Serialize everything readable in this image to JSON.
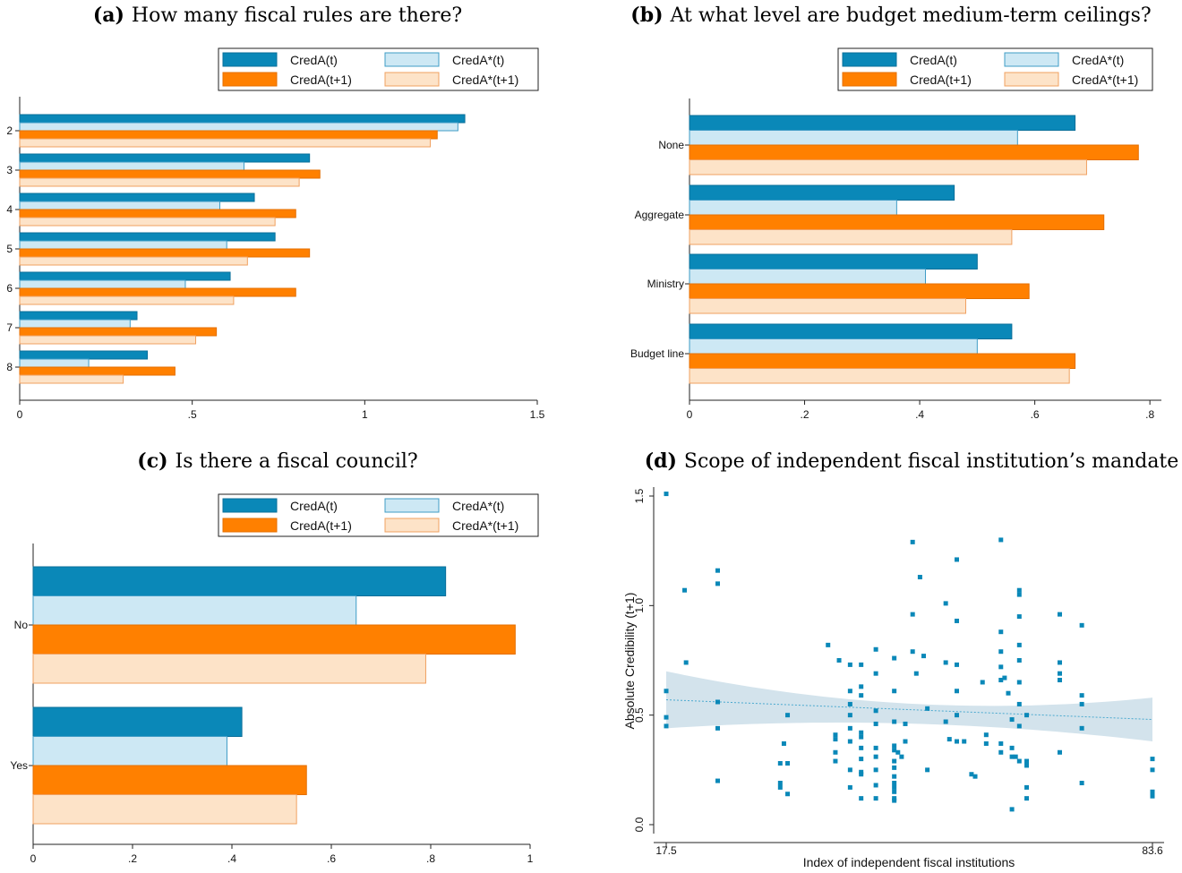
{
  "colors": {
    "creda_t": "#0a88b8",
    "creda_t_stroke": "#0a6f9a",
    "credastar_t": "#cde8f4",
    "credastar_t_stroke": "#3f9cc6",
    "creda_t1": "#ff8000",
    "creda_t1_stroke": "#e46f00",
    "credastar_t1": "#fde3c8",
    "credastar_t1_stroke": "#f0a060",
    "ci_band": "#d3e3ec",
    "fit_line": "#4aa9cf",
    "scatter": "#0a88b8"
  },
  "chart_data": [
    {
      "id": "a",
      "type": "bar",
      "orientation": "horizontal",
      "caption_letter": "(a)",
      "caption": "How many fiscal rules are there?",
      "categories": [
        "2",
        "3",
        "4",
        "5",
        "6",
        "7",
        "8"
      ],
      "series": [
        {
          "name": "CredA(t)",
          "values": [
            1.29,
            0.84,
            0.68,
            0.74,
            0.61,
            0.34,
            0.37
          ]
        },
        {
          "name": "CredA*(t)",
          "values": [
            1.27,
            0.65,
            0.58,
            0.6,
            0.48,
            0.32,
            0.2
          ]
        },
        {
          "name": "CredA(t+1)",
          "values": [
            1.21,
            0.87,
            0.8,
            0.84,
            0.8,
            0.57,
            0.45
          ]
        },
        {
          "name": "CredA*(t+1)",
          "values": [
            1.19,
            0.81,
            0.74,
            0.66,
            0.62,
            0.51,
            0.3
          ]
        }
      ],
      "xlim": [
        0,
        1.5
      ],
      "xticks": [
        {
          "value": 0,
          "label": "0"
        },
        {
          "value": 0.5,
          "label": ".5"
        },
        {
          "value": 1,
          "label": "1"
        },
        {
          "value": 1.5,
          "label": "1.5"
        }
      ],
      "legend": {
        "position": "top-right",
        "entries": [
          "CredA(t)",
          "CredA*(t)",
          "CredA(t+1)",
          "CredA*(t+1)"
        ]
      }
    },
    {
      "id": "b",
      "type": "bar",
      "orientation": "horizontal",
      "caption_letter": "(b)",
      "caption": "At what level are budget medium-term ceilings?",
      "categories": [
        "None",
        "Aggregate",
        "Ministry",
        "Budget line"
      ],
      "series": [
        {
          "name": "CredA(t)",
          "values": [
            0.67,
            0.46,
            0.5,
            0.56
          ]
        },
        {
          "name": "CredA*(t)",
          "values": [
            0.57,
            0.36,
            0.41,
            0.5
          ]
        },
        {
          "name": "CredA(t+1)",
          "values": [
            0.78,
            0.72,
            0.59,
            0.67
          ]
        },
        {
          "name": "CredA*(t+1)",
          "values": [
            0.69,
            0.56,
            0.48,
            0.66
          ]
        }
      ],
      "xlim": [
        0,
        0.82
      ],
      "xticks": [
        {
          "value": 0,
          "label": "0"
        },
        {
          "value": 0.2,
          "label": ".2"
        },
        {
          "value": 0.4,
          "label": ".4"
        },
        {
          "value": 0.6,
          "label": ".6"
        },
        {
          "value": 0.8,
          "label": ".8"
        }
      ],
      "legend": {
        "position": "top-right",
        "entries": [
          "CredA(t)",
          "CredA*(t)",
          "CredA(t+1)",
          "CredA*(t+1)"
        ]
      }
    },
    {
      "id": "c",
      "type": "bar",
      "orientation": "horizontal",
      "caption_letter": "(c)",
      "caption": "Is there a fiscal council?",
      "categories": [
        "No",
        "Yes"
      ],
      "series": [
        {
          "name": "CredA(t)",
          "values": [
            0.83,
            0.42
          ]
        },
        {
          "name": "CredA*(t)",
          "values": [
            0.65,
            0.39
          ]
        },
        {
          "name": "CredA(t+1)",
          "values": [
            0.97,
            0.55
          ]
        },
        {
          "name": "CredA*(t+1)",
          "values": [
            0.79,
            0.53
          ]
        }
      ],
      "xlim": [
        0,
        1.0
      ],
      "xticks": [
        {
          "value": 0,
          "label": "0"
        },
        {
          "value": 0.2,
          "label": ".2"
        },
        {
          "value": 0.4,
          "label": ".4"
        },
        {
          "value": 0.6,
          "label": ".6"
        },
        {
          "value": 0.8,
          "label": ".8"
        },
        {
          "value": 1,
          "label": "1"
        }
      ],
      "legend": {
        "position": "top-right",
        "entries": [
          "CredA(t)",
          "CredA*(t)",
          "CredA(t+1)",
          "CredA*(t+1)"
        ]
      }
    },
    {
      "id": "d",
      "type": "scatter",
      "caption_letter": "(d)",
      "caption": "Scope of independent fiscal institution’s mandate",
      "xlabel": "Index of independent fiscal institutions",
      "ylabel": "Absolute Credibility (t+1)",
      "xlim": [
        17.5,
        83.6
      ],
      "ylim": [
        0,
        1.5
      ],
      "xticks": [
        {
          "value": 17.5,
          "label": "17.5"
        },
        {
          "value": 83.6,
          "label": "83.6"
        }
      ],
      "yticks": [
        {
          "value": 0,
          "label": "0.0"
        },
        {
          "value": 0.5,
          "label": "0.5"
        },
        {
          "value": 1.0,
          "label": "1.0"
        },
        {
          "value": 1.5,
          "label": "1.5"
        }
      ],
      "fit": {
        "y_at_xmin": 0.57,
        "y_at_xmax": 0.48,
        "ci_lower_at_xmin": 0.44,
        "ci_upper_at_xmin": 0.7,
        "ci_lower_at_xmax": 0.38,
        "ci_upper_at_xmax": 0.58,
        "ci_lower_at_center": 0.46,
        "ci_upper_at_center": 0.55,
        "center_x": 52
      },
      "points": [
        [
          17.5,
          1.51
        ],
        [
          17.5,
          0.61
        ],
        [
          17.5,
          0.49
        ],
        [
          17.5,
          0.45
        ],
        [
          20,
          1.07
        ],
        [
          20.2,
          0.74
        ],
        [
          24.5,
          1.16
        ],
        [
          24.5,
          1.1
        ],
        [
          24.5,
          0.56
        ],
        [
          24.5,
          0.44
        ],
        [
          24.5,
          0.2
        ],
        [
          33,
          0.28
        ],
        [
          33,
          0.19
        ],
        [
          33,
          0.17
        ],
        [
          33.5,
          0.37
        ],
        [
          34,
          0.5
        ],
        [
          34,
          0.28
        ],
        [
          34,
          0.14
        ],
        [
          39.5,
          0.82
        ],
        [
          40.5,
          0.41
        ],
        [
          40.5,
          0.39
        ],
        [
          40.5,
          0.33
        ],
        [
          40.5,
          0.29
        ],
        [
          41,
          0.75
        ],
        [
          42.5,
          0.73
        ],
        [
          42.5,
          0.61
        ],
        [
          42.5,
          0.55
        ],
        [
          42.5,
          0.5
        ],
        [
          42.5,
          0.44
        ],
        [
          42.5,
          0.38
        ],
        [
          42.5,
          0.25
        ],
        [
          42.5,
          0.17
        ],
        [
          44,
          0.73
        ],
        [
          44,
          0.63
        ],
        [
          44,
          0.59
        ],
        [
          44,
          0.42
        ],
        [
          44,
          0.4
        ],
        [
          44,
          0.35
        ],
        [
          44,
          0.3
        ],
        [
          44,
          0.24
        ],
        [
          44,
          0.23
        ],
        [
          44,
          0.12
        ],
        [
          46,
          0.8
        ],
        [
          46,
          0.69
        ],
        [
          46,
          0.52
        ],
        [
          46,
          0.46
        ],
        [
          46,
          0.35
        ],
        [
          46,
          0.31
        ],
        [
          46,
          0.25
        ],
        [
          46,
          0.18
        ],
        [
          46,
          0.12
        ],
        [
          48.5,
          0.76
        ],
        [
          48.5,
          0.61
        ],
        [
          48.5,
          0.47
        ],
        [
          48.5,
          0.36
        ],
        [
          48.5,
          0.34
        ],
        [
          48.5,
          0.29
        ],
        [
          48.5,
          0.26
        ],
        [
          48.5,
          0.22
        ],
        [
          48.5,
          0.19
        ],
        [
          48.5,
          0.17
        ],
        [
          48.5,
          0.15
        ],
        [
          48.5,
          0.12
        ],
        [
          48.5,
          0.11
        ],
        [
          49,
          0.33
        ],
        [
          49.5,
          0.31
        ],
        [
          50,
          0.46
        ],
        [
          50,
          0.38
        ],
        [
          51,
          1.29
        ],
        [
          51,
          0.96
        ],
        [
          51,
          0.79
        ],
        [
          51.5,
          0.69
        ],
        [
          52,
          1.13
        ],
        [
          52.5,
          0.77
        ],
        [
          53,
          0.53
        ],
        [
          53,
          0.25
        ],
        [
          55.5,
          1.01
        ],
        [
          55.5,
          0.74
        ],
        [
          55.5,
          0.47
        ],
        [
          56,
          0.39
        ],
        [
          57,
          1.21
        ],
        [
          57,
          0.93
        ],
        [
          57,
          0.73
        ],
        [
          57,
          0.61
        ],
        [
          57,
          0.5
        ],
        [
          57,
          0.38
        ],
        [
          58,
          0.38
        ],
        [
          59,
          0.23
        ],
        [
          59.5,
          0.22
        ],
        [
          60.5,
          0.65
        ],
        [
          61,
          0.41
        ],
        [
          61,
          0.37
        ],
        [
          63,
          1.3
        ],
        [
          63,
          0.88
        ],
        [
          63,
          0.79
        ],
        [
          63,
          0.72
        ],
        [
          63,
          0.66
        ],
        [
          63,
          0.33
        ],
        [
          63,
          0.37
        ],
        [
          63.5,
          0.67
        ],
        [
          64,
          0.6
        ],
        [
          64.5,
          0.48
        ],
        [
          64.5,
          0.35
        ],
        [
          64.5,
          0.31
        ],
        [
          64.5,
          0.07
        ],
        [
          65,
          0.31
        ],
        [
          65.5,
          1.07
        ],
        [
          65.5,
          1.05
        ],
        [
          65.5,
          0.95
        ],
        [
          65.5,
          0.82
        ],
        [
          65.5,
          0.75
        ],
        [
          65.5,
          0.65
        ],
        [
          65.5,
          0.55
        ],
        [
          65.5,
          0.45
        ],
        [
          65.5,
          0.29
        ],
        [
          66.5,
          0.5
        ],
        [
          66.5,
          0.29
        ],
        [
          66.5,
          0.27
        ],
        [
          66.5,
          0.17
        ],
        [
          66.5,
          0.12
        ],
        [
          71,
          0.96
        ],
        [
          71,
          0.74
        ],
        [
          71,
          0.69
        ],
        [
          71,
          0.66
        ],
        [
          71,
          0.33
        ],
        [
          74,
          0.91
        ],
        [
          74,
          0.59
        ],
        [
          74,
          0.55
        ],
        [
          74,
          0.44
        ],
        [
          74,
          0.19
        ],
        [
          83.6,
          0.3
        ],
        [
          83.6,
          0.25
        ],
        [
          83.6,
          0.15
        ],
        [
          83.6,
          0.14
        ],
        [
          83.6,
          0.13
        ]
      ]
    }
  ]
}
